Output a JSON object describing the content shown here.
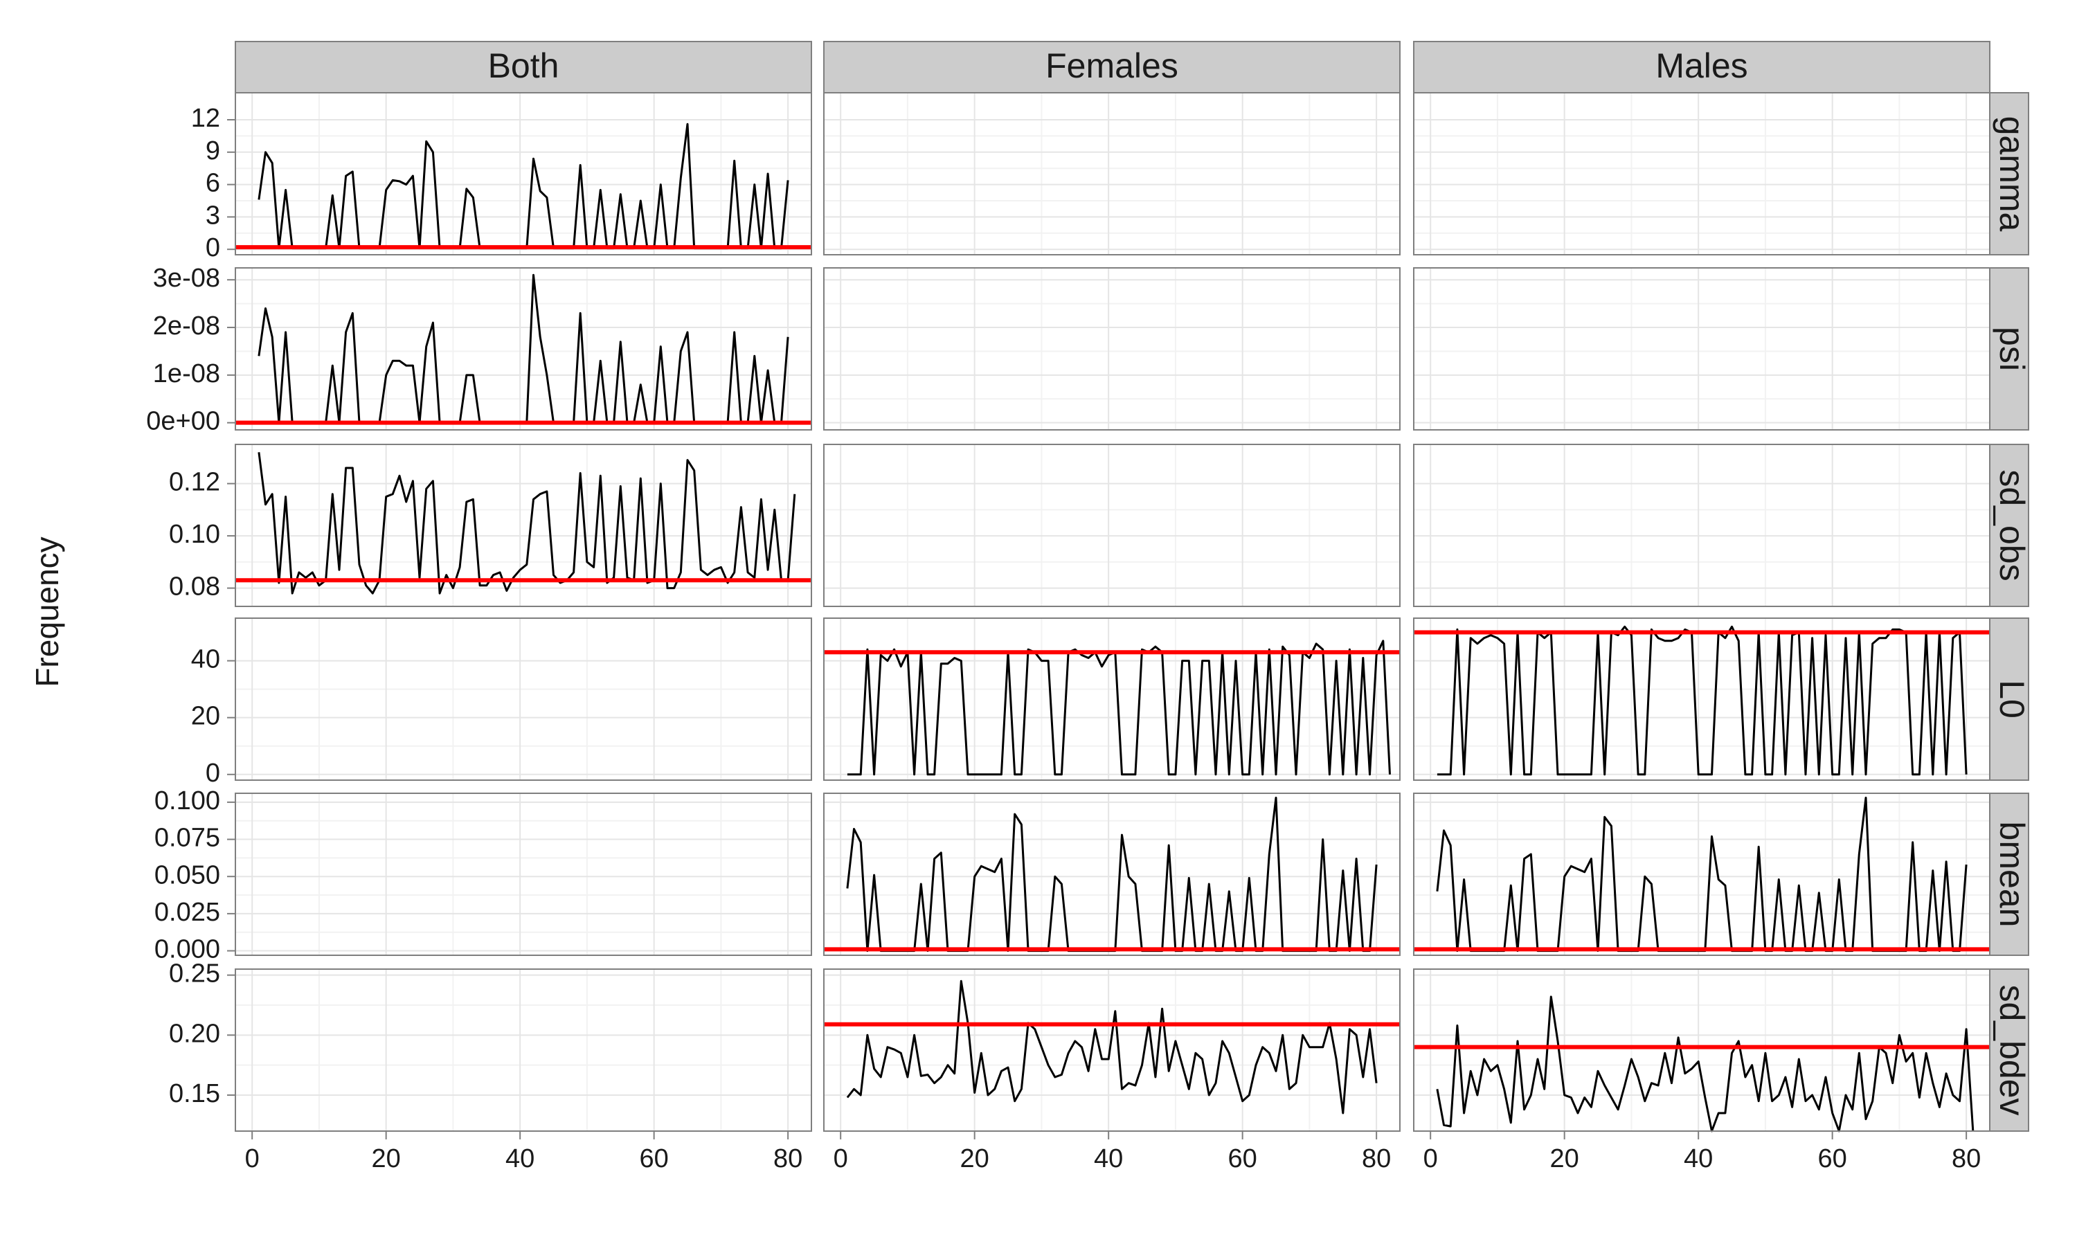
{
  "chart_data": {
    "type": "line",
    "ylabel": "Frequency",
    "xlabel": "",
    "columns": [
      "Both",
      "Females",
      "Males"
    ],
    "rows": [
      "gamma",
      "psi",
      "sd_obs",
      "L0",
      "bmean",
      "sd_bdev"
    ],
    "xlim": [
      -2.5,
      83.5
    ],
    "x_ticks": [
      0,
      20,
      40,
      60,
      80
    ],
    "y_axes": [
      {
        "row": "gamma",
        "ylim": [
          -0.5,
          14.5
        ],
        "ticks": [
          0,
          3,
          6,
          9,
          12
        ],
        "tick_labels": [
          "0",
          "3",
          "6",
          "9",
          "12"
        ]
      },
      {
        "row": "psi",
        "ylim": [
          -1.5e-09,
          3.25e-08
        ],
        "ticks": [
          0,
          1e-08,
          2e-08,
          3e-08
        ],
        "tick_labels": [
          "0e+00",
          "1e-08",
          "2e-08",
          "3e-08"
        ]
      },
      {
        "row": "sd_obs",
        "ylim": [
          0.073,
          0.135
        ],
        "ticks": [
          0.08,
          0.1,
          0.12
        ],
        "tick_labels": [
          "0.08",
          "0.10",
          "0.12"
        ]
      },
      {
        "row": "L0",
        "ylim": [
          -2,
          55
        ],
        "ticks": [
          0,
          20,
          40
        ],
        "tick_labels": [
          "0",
          "20",
          "40"
        ]
      },
      {
        "row": "bmean",
        "ylim": [
          -0.003,
          0.106
        ],
        "ticks": [
          0,
          0.025,
          0.05,
          0.075,
          0.1
        ],
        "tick_labels": [
          "0.000",
          "0.025",
          "0.050",
          "0.075",
          "0.100"
        ]
      },
      {
        "row": "sd_bdev",
        "ylim": [
          0.12,
          0.255
        ],
        "ticks": [
          0.15,
          0.2,
          0.25
        ],
        "tick_labels": [
          "0.15",
          "0.20",
          "0.25"
        ]
      }
    ],
    "panels": [
      {
        "column": "Both",
        "row": "gamma",
        "ref_line": 0.2,
        "values": [
          4.6,
          9,
          8,
          0.1,
          5.5,
          0.1,
          0.1,
          0.1,
          0.1,
          0.1,
          0.1,
          5,
          0.1,
          6.8,
          7.2,
          0.1,
          0.1,
          0.1,
          0.1,
          5.5,
          6.4,
          6.3,
          6,
          6.8,
          0.1,
          10,
          9,
          0.1,
          0.1,
          0.1,
          0.1,
          5.6,
          4.8,
          0.1,
          0.1,
          0.1,
          0.1,
          0.1,
          0.1,
          0.1,
          0.1,
          8.4,
          5.4,
          4.8,
          0.1,
          0.1,
          0.1,
          0.1,
          7.8,
          0.1,
          0.1,
          5.5,
          0.1,
          0.1,
          5.1,
          0.1,
          0.1,
          4.5,
          0.1,
          0.1,
          6,
          0.1,
          0.1,
          6.6,
          11.6,
          0.1,
          0.1,
          0.1,
          0.1,
          0.1,
          0.1,
          8.2,
          0.1,
          0.1,
          6,
          0.1,
          7,
          0.1,
          0.1,
          6.4
        ]
      },
      {
        "column": "Both",
        "row": "psi",
        "ref_line": 0,
        "values": [
          1.4e-08,
          2.4e-08,
          1.8e-08,
          0,
          1.9e-08,
          0,
          0,
          0,
          0,
          0,
          0,
          1.2e-08,
          0,
          1.9e-08,
          2.3e-08,
          0,
          0,
          0,
          0,
          1e-08,
          1.3e-08,
          1.3e-08,
          1.2e-08,
          1.2e-08,
          0,
          1.6e-08,
          2.1e-08,
          0,
          0,
          0,
          0,
          1e-08,
          1e-08,
          0,
          0,
          0,
          0,
          0,
          0,
          0,
          0,
          3.1e-08,
          1.8e-08,
          1e-08,
          0,
          0,
          0,
          0,
          2.3e-08,
          0,
          0,
          1.3e-08,
          0,
          0,
          1.7e-08,
          0,
          0,
          8e-09,
          0,
          0,
          1.6e-08,
          0,
          0,
          1.5e-08,
          1.9e-08,
          0,
          0,
          0,
          0,
          0,
          0,
          1.9e-08,
          0,
          0,
          1.4e-08,
          0,
          1.1e-08,
          0,
          0,
          1.8e-08
        ]
      },
      {
        "column": "Both",
        "row": "sd_obs",
        "ref_line": 0.083,
        "values": [
          0.132,
          0.112,
          0.116,
          0.082,
          0.115,
          0.078,
          0.086,
          0.084,
          0.086,
          0.081,
          0.083,
          0.116,
          0.087,
          0.126,
          0.126,
          0.089,
          0.081,
          0.078,
          0.083,
          0.115,
          0.116,
          0.123,
          0.113,
          0.121,
          0.084,
          0.118,
          0.121,
          0.078,
          0.085,
          0.08,
          0.088,
          0.113,
          0.114,
          0.081,
          0.081,
          0.085,
          0.086,
          0.079,
          0.084,
          0.087,
          0.089,
          0.114,
          0.116,
          0.117,
          0.085,
          0.082,
          0.083,
          0.086,
          0.124,
          0.09,
          0.088,
          0.123,
          0.082,
          0.084,
          0.119,
          0.084,
          0.083,
          0.122,
          0.082,
          0.083,
          0.12,
          0.08,
          0.08,
          0.086,
          0.129,
          0.125,
          0.087,
          0.085,
          0.087,
          0.088,
          0.082,
          0.086,
          0.111,
          0.086,
          0.084,
          0.114,
          0.087,
          0.11,
          0.083,
          0.083,
          0.116
        ]
      },
      {
        "column": "Females",
        "row": "L0",
        "ref_line": 43,
        "values": [
          0,
          0,
          0,
          44,
          0,
          42,
          40,
          44,
          38,
          43,
          0,
          43,
          0,
          0,
          39,
          39,
          41,
          40,
          0,
          0,
          0,
          0,
          0,
          0,
          43,
          0,
          0,
          44,
          43,
          40,
          40,
          0,
          0,
          43,
          44,
          42,
          41,
          43,
          38,
          42,
          43,
          0,
          0,
          0,
          44,
          43,
          45,
          43,
          0,
          0,
          40,
          40,
          0,
          40,
          40,
          0,
          43,
          0,
          40,
          0,
          0,
          43,
          0,
          44,
          0,
          45,
          42,
          0,
          43,
          41,
          46,
          44,
          0,
          40,
          0,
          44,
          0,
          41,
          0,
          42,
          47,
          0
        ]
      },
      {
        "column": "Females",
        "row": "bmean",
        "ref_line": 0.001,
        "values": [
          0.042,
          0.082,
          0.073,
          0,
          0.051,
          0,
          0,
          0,
          0,
          0,
          0,
          0.045,
          0,
          0.062,
          0.066,
          0,
          0,
          0,
          0,
          0.05,
          0.057,
          0.055,
          0.053,
          0.062,
          0,
          0.092,
          0.085,
          0,
          0,
          0,
          0,
          0.05,
          0.045,
          0,
          0,
          0,
          0,
          0,
          0,
          0,
          0,
          0.078,
          0.05,
          0.045,
          0,
          0,
          0,
          0,
          0.071,
          0,
          0,
          0.049,
          0,
          0,
          0.045,
          0,
          0,
          0.04,
          0,
          0,
          0.049,
          0,
          0,
          0.065,
          0.103,
          0,
          0,
          0,
          0,
          0,
          0,
          0.075,
          0,
          0,
          0.054,
          0,
          0.062,
          0,
          0,
          0.058
        ]
      },
      {
        "column": "Females",
        "row": "sd_bdev",
        "ref_line": 0.209,
        "values": [
          0.148,
          0.155,
          0.15,
          0.2,
          0.172,
          0.165,
          0.19,
          0.188,
          0.185,
          0.165,
          0.2,
          0.166,
          0.167,
          0.16,
          0.165,
          0.175,
          0.168,
          0.245,
          0.21,
          0.152,
          0.185,
          0.15,
          0.155,
          0.17,
          0.173,
          0.145,
          0.155,
          0.21,
          0.205,
          0.19,
          0.175,
          0.165,
          0.167,
          0.185,
          0.195,
          0.19,
          0.17,
          0.205,
          0.18,
          0.18,
          0.22,
          0.155,
          0.16,
          0.158,
          0.175,
          0.21,
          0.165,
          0.222,
          0.17,
          0.195,
          0.175,
          0.155,
          0.185,
          0.18,
          0.15,
          0.16,
          0.195,
          0.185,
          0.165,
          0.145,
          0.15,
          0.175,
          0.19,
          0.185,
          0.17,
          0.2,
          0.155,
          0.16,
          0.2,
          0.19,
          0.19,
          0.19,
          0.21,
          0.18,
          0.135,
          0.205,
          0.2,
          0.165,
          0.205,
          0.16
        ]
      },
      {
        "column": "Males",
        "row": "L0",
        "ref_line": 50,
        "values": [
          0,
          0,
          0,
          51,
          0,
          48,
          46,
          48,
          49,
          48,
          46,
          0,
          50,
          0,
          0,
          50,
          48,
          50,
          0,
          0,
          0,
          0,
          0,
          0,
          50,
          0,
          50,
          49,
          52,
          49,
          0,
          0,
          51,
          48,
          47,
          47,
          48,
          51,
          50,
          0,
          0,
          0,
          50,
          48,
          52,
          47,
          0,
          0,
          50,
          0,
          0,
          50,
          0,
          49,
          50,
          0,
          48,
          0,
          49,
          0,
          0,
          48,
          0,
          50,
          0,
          46,
          48,
          48,
          51,
          51,
          50,
          0,
          0,
          50,
          0,
          50,
          0,
          48,
          50,
          0
        ]
      },
      {
        "column": "Males",
        "row": "bmean",
        "ref_line": 0.001,
        "values": [
          0.04,
          0.081,
          0.071,
          0,
          0.048,
          0,
          0,
          0,
          0,
          0,
          0,
          0.044,
          0,
          0.062,
          0.065,
          0,
          0,
          0,
          0,
          0.05,
          0.057,
          0.055,
          0.053,
          0.062,
          0,
          0.09,
          0.084,
          0,
          0,
          0,
          0,
          0.05,
          0.045,
          0,
          0,
          0,
          0,
          0,
          0,
          0,
          0,
          0.077,
          0.048,
          0.044,
          0,
          0,
          0,
          0,
          0.07,
          0,
          0,
          0.048,
          0,
          0,
          0.044,
          0,
          0,
          0.039,
          0,
          0,
          0.048,
          0,
          0,
          0.065,
          0.103,
          0,
          0,
          0,
          0,
          0,
          0,
          0.073,
          0,
          0,
          0.054,
          0,
          0.06,
          0,
          0,
          0.058
        ]
      },
      {
        "column": "Males",
        "row": "sd_bdev",
        "ref_line": 0.19,
        "values": [
          0.155,
          0.125,
          0.124,
          0.208,
          0.135,
          0.17,
          0.15,
          0.18,
          0.17,
          0.175,
          0.155,
          0.127,
          0.195,
          0.138,
          0.15,
          0.18,
          0.155,
          0.232,
          0.195,
          0.15,
          0.148,
          0.135,
          0.148,
          0.14,
          0.17,
          0.158,
          0.148,
          0.138,
          0.158,
          0.18,
          0.165,
          0.145,
          0.16,
          0.158,
          0.185,
          0.16,
          0.198,
          0.168,
          0.172,
          0.178,
          0.148,
          0.12,
          0.135,
          0.135,
          0.185,
          0.195,
          0.165,
          0.175,
          0.145,
          0.185,
          0.145,
          0.15,
          0.165,
          0.14,
          0.18,
          0.145,
          0.15,
          0.138,
          0.165,
          0.135,
          0.12,
          0.15,
          0.138,
          0.185,
          0.13,
          0.145,
          0.19,
          0.185,
          0.16,
          0.2,
          0.178,
          0.185,
          0.148,
          0.185,
          0.16,
          0.14,
          0.168,
          0.15,
          0.145,
          0.205,
          0.12
        ]
      }
    ]
  }
}
